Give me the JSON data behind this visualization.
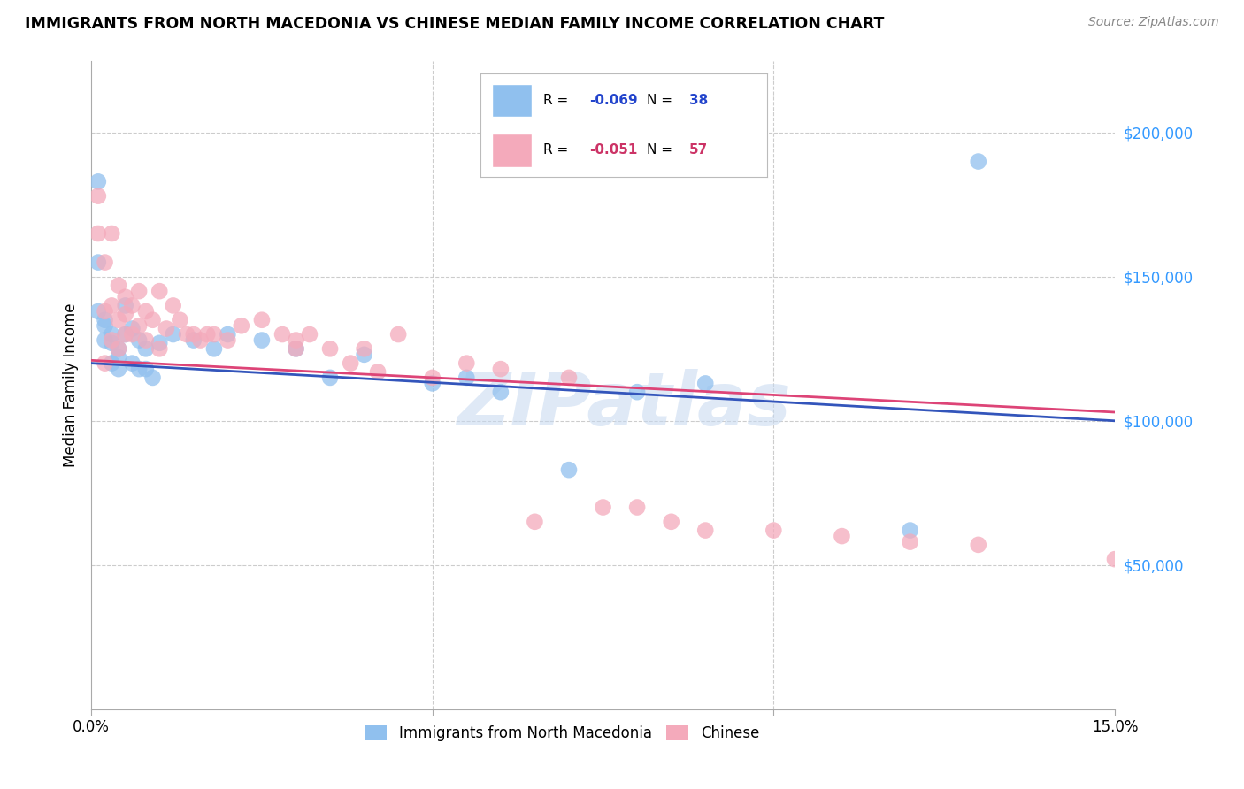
{
  "title": "IMMIGRANTS FROM NORTH MACEDONIA VS CHINESE MEDIAN FAMILY INCOME CORRELATION CHART",
  "source": "Source: ZipAtlas.com",
  "ylabel": "Median Family Income",
  "xlim": [
    0.0,
    0.15
  ],
  "ylim": [
    0,
    225000
  ],
  "ytick_vals": [
    50000,
    100000,
    150000,
    200000
  ],
  "ytick_labels": [
    "$50,000",
    "$100,000",
    "$150,000",
    "$200,000"
  ],
  "xtick_vals": [
    0.0,
    0.05,
    0.1,
    0.15
  ],
  "xtick_labels": [
    "0.0%",
    "",
    "",
    "15.0%"
  ],
  "background_color": "#ffffff",
  "grid_color": "#cccccc",
  "blue_scatter_color": "#90C0EE",
  "pink_scatter_color": "#F4AABB",
  "blue_line_color": "#3355BB",
  "pink_line_color": "#DD4477",
  "blue_label": "Immigrants from North Macedonia",
  "pink_label": "Chinese",
  "R_blue": "-0.069",
  "N_blue": "38",
  "R_pink": "-0.051",
  "N_pink": "57",
  "ytick_color": "#3399FF",
  "watermark": "ZIPatlas",
  "blue_x": [
    0.001,
    0.001,
    0.001,
    0.002,
    0.002,
    0.002,
    0.003,
    0.003,
    0.003,
    0.004,
    0.004,
    0.004,
    0.005,
    0.005,
    0.006,
    0.006,
    0.007,
    0.007,
    0.008,
    0.008,
    0.009,
    0.01,
    0.012,
    0.015,
    0.018,
    0.02,
    0.025,
    0.03,
    0.035,
    0.04,
    0.05,
    0.055,
    0.06,
    0.07,
    0.08,
    0.09,
    0.12,
    0.13
  ],
  "blue_y": [
    183000,
    155000,
    138000,
    135000,
    133000,
    128000,
    130000,
    127000,
    120000,
    125000,
    122000,
    118000,
    140000,
    130000,
    132000,
    120000,
    128000,
    118000,
    125000,
    118000,
    115000,
    127000,
    130000,
    128000,
    125000,
    130000,
    128000,
    125000,
    115000,
    123000,
    113000,
    115000,
    110000,
    83000,
    110000,
    113000,
    62000,
    190000
  ],
  "pink_x": [
    0.001,
    0.001,
    0.002,
    0.002,
    0.002,
    0.003,
    0.003,
    0.003,
    0.004,
    0.004,
    0.004,
    0.005,
    0.005,
    0.005,
    0.006,
    0.006,
    0.007,
    0.007,
    0.008,
    0.008,
    0.009,
    0.01,
    0.01,
    0.011,
    0.012,
    0.013,
    0.014,
    0.015,
    0.016,
    0.017,
    0.018,
    0.02,
    0.022,
    0.025,
    0.028,
    0.03,
    0.03,
    0.032,
    0.035,
    0.038,
    0.04,
    0.042,
    0.045,
    0.05,
    0.055,
    0.06,
    0.065,
    0.07,
    0.075,
    0.08,
    0.085,
    0.09,
    0.1,
    0.11,
    0.12,
    0.13,
    0.15
  ],
  "pink_y": [
    178000,
    165000,
    155000,
    138000,
    120000,
    165000,
    140000,
    128000,
    147000,
    135000,
    125000,
    143000,
    137000,
    130000,
    140000,
    130000,
    145000,
    133000,
    138000,
    128000,
    135000,
    145000,
    125000,
    132000,
    140000,
    135000,
    130000,
    130000,
    128000,
    130000,
    130000,
    128000,
    133000,
    135000,
    130000,
    128000,
    125000,
    130000,
    125000,
    120000,
    125000,
    117000,
    130000,
    115000,
    120000,
    118000,
    65000,
    115000,
    70000,
    70000,
    65000,
    62000,
    62000,
    60000,
    58000,
    57000,
    52000
  ]
}
